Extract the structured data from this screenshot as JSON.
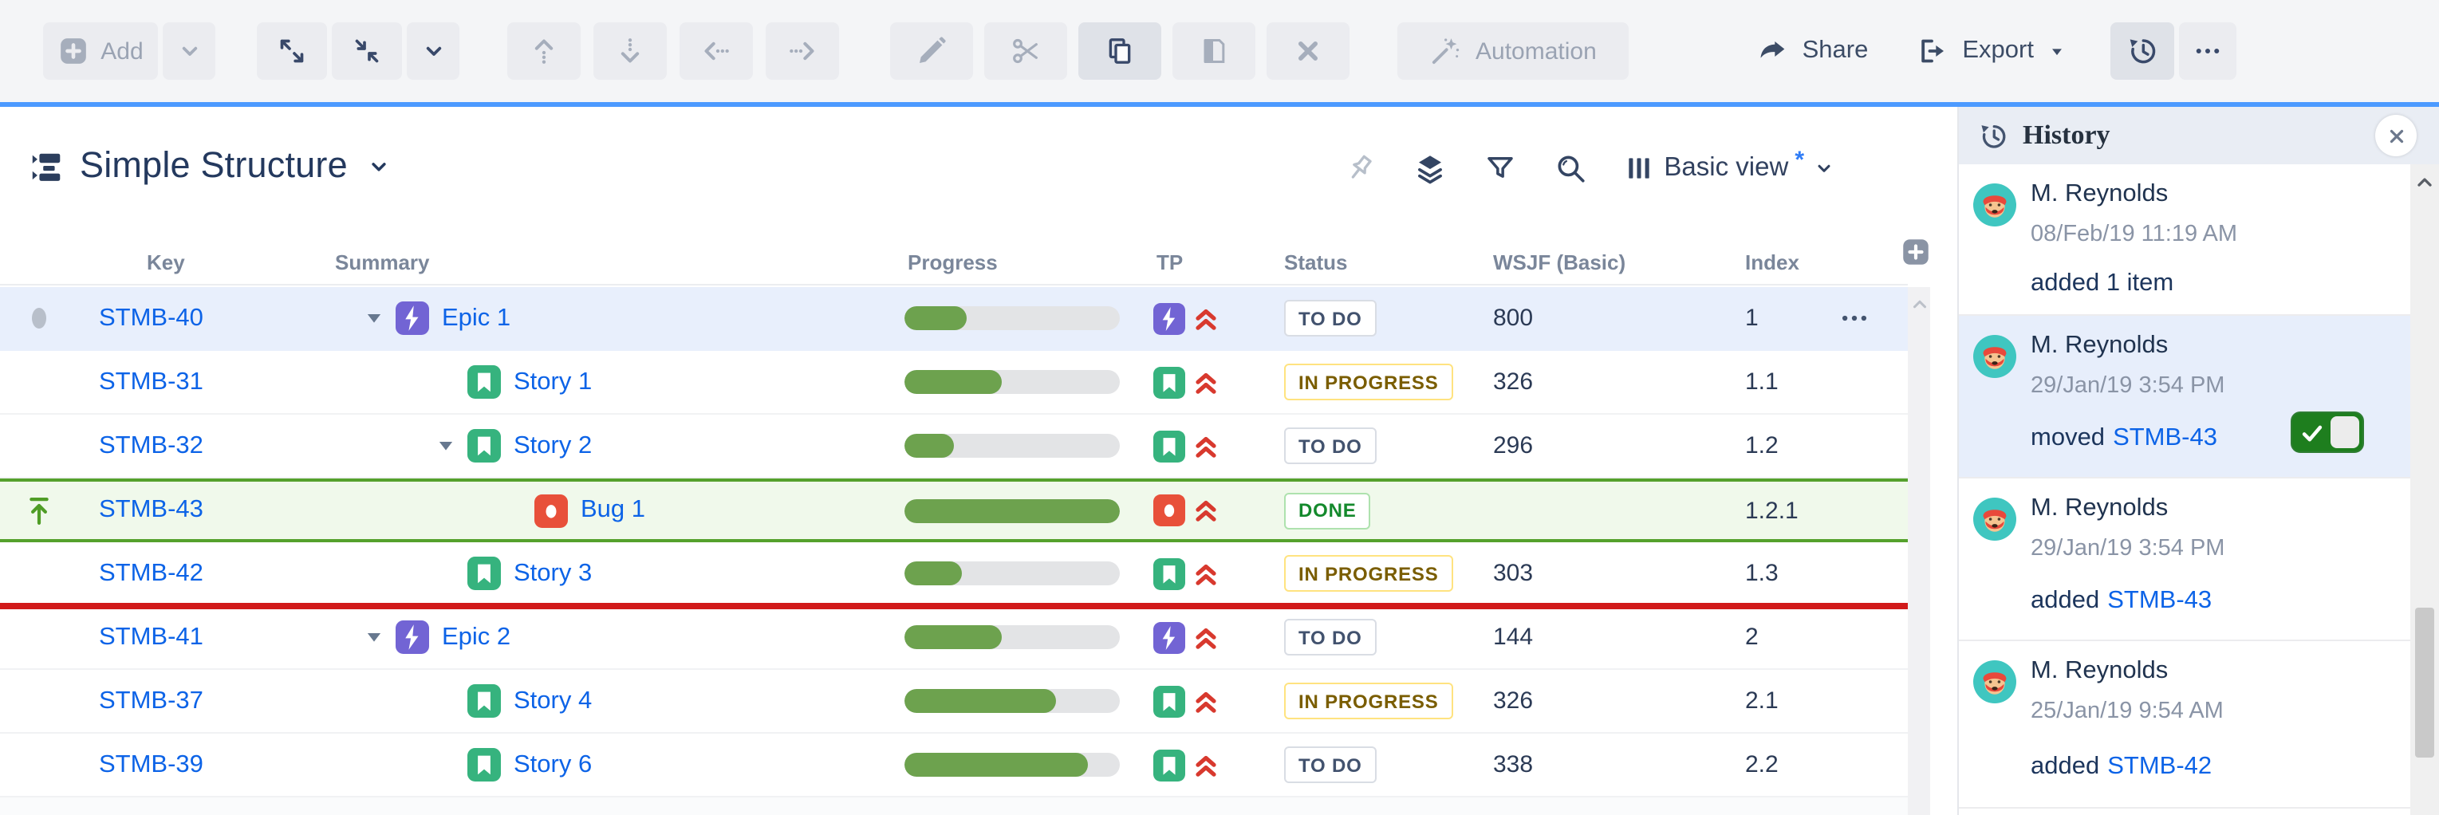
{
  "toolbar": {
    "add_label": "Add",
    "automation_label": "Automation",
    "share_label": "Share",
    "export_label": "Export"
  },
  "structure_header": {
    "title": "Simple Structure",
    "view_label": "Basic view",
    "view_modified_indicator": "*"
  },
  "history_panel": {
    "title": "History",
    "entries": [
      {
        "author": "M. Reynolds",
        "timestamp": "08/Feb/19 11:19 AM",
        "action": "added 1 item",
        "link": ""
      },
      {
        "author": "M. Reynolds",
        "timestamp": "29/Jan/19 3:54 PM",
        "action": "moved",
        "link": "STMB-43",
        "selected": true,
        "toggle": "on"
      },
      {
        "author": "M. Reynolds",
        "timestamp": "29/Jan/19 3:54 PM",
        "action": "added",
        "link": "STMB-43"
      },
      {
        "author": "M. Reynolds",
        "timestamp": "25/Jan/19 9:54 AM",
        "action": "added",
        "link": "STMB-42"
      }
    ]
  },
  "table": {
    "columns": [
      "Key",
      "Summary",
      "Progress",
      "TP",
      "Status",
      "WSJF (Basic)",
      "Index"
    ],
    "rows": [
      {
        "key": "STMB-40",
        "summary": "Epic 1",
        "type": "epic",
        "priority": "Highest",
        "progress": 29,
        "status": "TO DO",
        "wsjf": "800",
        "index": "1",
        "selected": true
      },
      {
        "key": "STMB-31",
        "summary": "Story 1",
        "type": "story",
        "priority": "Highest",
        "progress": 45,
        "status": "IN PROGRESS",
        "wsjf": "326",
        "index": "1.1"
      },
      {
        "key": "STMB-32",
        "summary": "Story 2",
        "type": "story",
        "priority": "Highest",
        "progress": 23,
        "status": "TO DO",
        "wsjf": "296",
        "index": "1.2"
      },
      {
        "key": "STMB-43",
        "summary": "Bug 1",
        "type": "bug",
        "priority": "Highest",
        "progress": 100,
        "status": "DONE",
        "wsjf": "",
        "index": "1.2.1",
        "highlighted": true
      },
      {
        "key": "STMB-42",
        "summary": "Story 3",
        "type": "story",
        "priority": "Highest",
        "progress": 27,
        "status": "IN PROGRESS",
        "wsjf": "303",
        "index": "1.3"
      },
      {
        "key": "STMB-41",
        "summary": "Epic 2",
        "type": "epic",
        "priority": "Highest",
        "progress": 45,
        "status": "TO DO",
        "wsjf": "144",
        "index": "2"
      },
      {
        "key": "STMB-37",
        "summary": "Story 4",
        "type": "story",
        "priority": "Highest",
        "progress": 70,
        "status": "IN PROGRESS",
        "wsjf": "326",
        "index": "2.1"
      },
      {
        "key": "STMB-39",
        "summary": "Story 6",
        "type": "story",
        "priority": "Highest",
        "progress": 85,
        "status": "TO DO",
        "wsjf": "338",
        "index": "2.2"
      }
    ]
  },
  "colors": {
    "accent_blue_divider": "#4c9aff",
    "link_blue": "#0c63e7",
    "selected_row": "#e8effc",
    "highlight_row_green": "#f0f9eb",
    "highlight_border_green": "#55a12c",
    "drop_indicator_red": "#d11a1a",
    "progress_fill": "#6da24e",
    "epic_purple": "#7264d4",
    "story_green": "#36b37e",
    "bug_red": "#e8503a",
    "status_todo_text": "#42526e",
    "status_inprogress_text": "#7a5d00",
    "status_done_text": "#14892c"
  }
}
